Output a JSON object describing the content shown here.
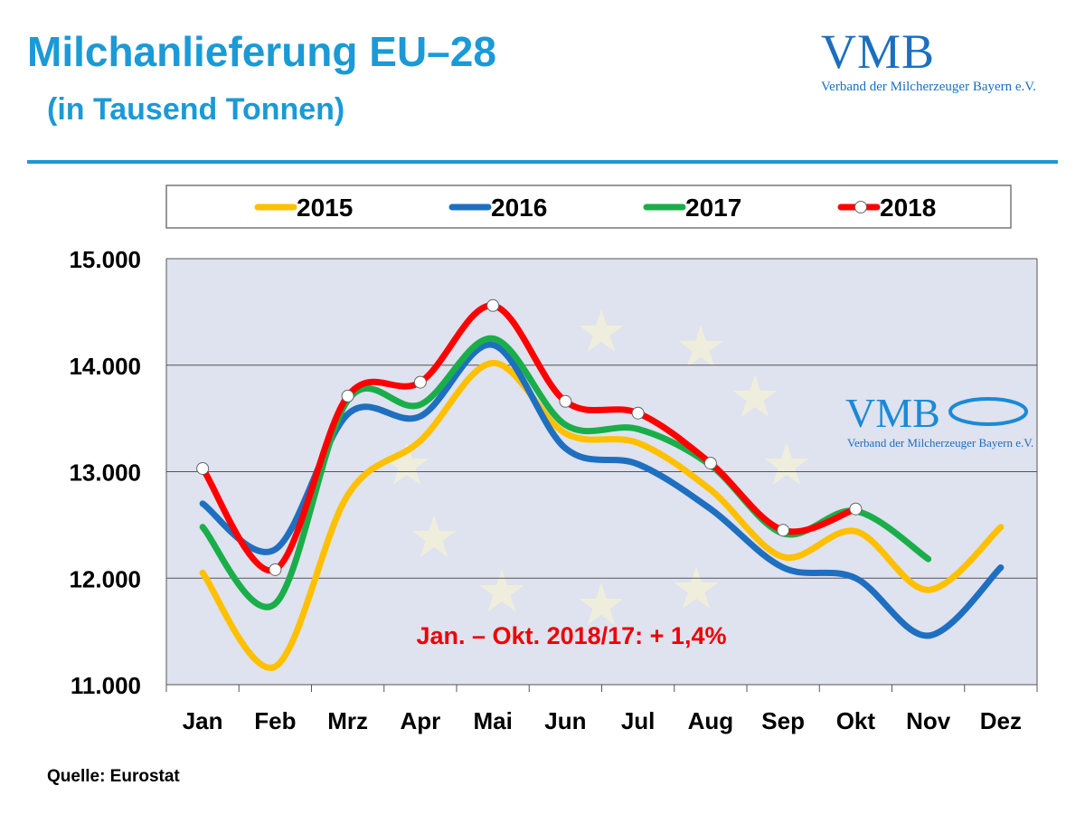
{
  "header": {
    "title": "Milchanlieferung EU–28",
    "subtitle": "(in Tausend Tonnen)"
  },
  "logo": {
    "name": "VMB",
    "tagline": "Verband der Milcherzeuger Bayern e.V."
  },
  "source": "Quelle: Eurostat",
  "chart_data": {
    "type": "line",
    "title": "Milchanlieferung EU–28 (in Tausend Tonnen)",
    "categories": [
      "Jan",
      "Feb",
      "Mrz",
      "Apr",
      "Mai",
      "Jun",
      "Jul",
      "Aug",
      "Sep",
      "Okt",
      "Nov",
      "Dez"
    ],
    "ylim": [
      11000,
      15000
    ],
    "yticks": [
      11000,
      12000,
      13000,
      14000,
      15000
    ],
    "ytick_labels": [
      "11.000",
      "12.000",
      "13.000",
      "14.000",
      "15.000"
    ],
    "grid": true,
    "legend_position": "top",
    "annotation": "Jan. – Okt. 2018/17: + 1,4%",
    "series": [
      {
        "name": "2015",
        "color": "#ffc000",
        "values": [
          12050,
          11170,
          12780,
          13290,
          14020,
          13360,
          13270,
          12830,
          12200,
          12440,
          11890,
          12480
        ]
      },
      {
        "name": "2016",
        "color": "#1f6fc0",
        "values": [
          12700,
          12270,
          13540,
          13520,
          14190,
          13220,
          13070,
          12650,
          12100,
          12000,
          11460,
          12100
        ]
      },
      {
        "name": "2017",
        "color": "#1aae4a",
        "values": [
          12480,
          11760,
          13670,
          13630,
          14250,
          13440,
          13400,
          13060,
          12420,
          12630,
          12180,
          null
        ]
      },
      {
        "name": "2018",
        "color": "#ff0000",
        "values": [
          13030,
          12080,
          13710,
          13840,
          14560,
          13660,
          13550,
          13080,
          12450,
          12650,
          null,
          null
        ],
        "markers": true
      }
    ]
  }
}
